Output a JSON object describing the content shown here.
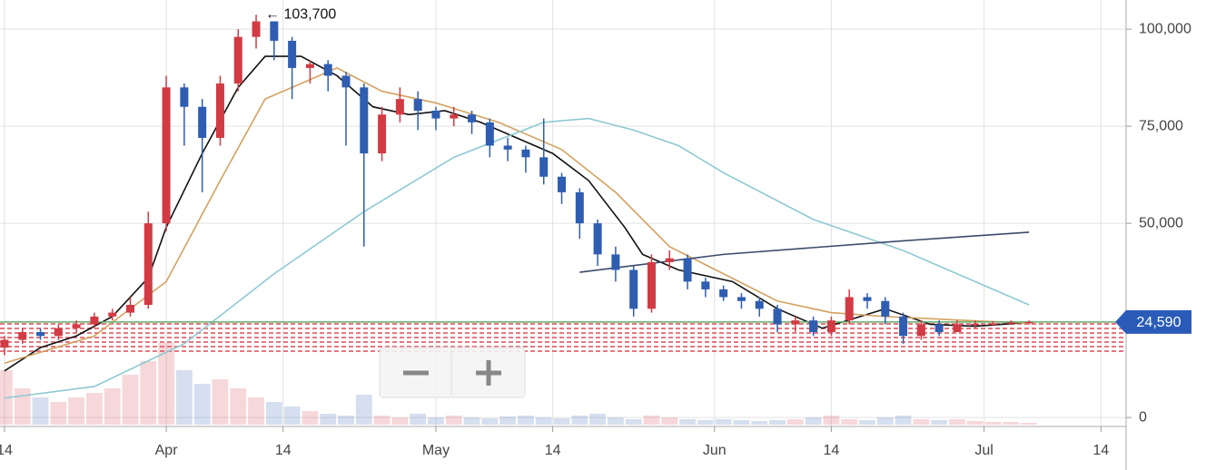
{
  "chart_data": {
    "type": "candlestick",
    "xlim": [
      -0.5,
      124.8
    ],
    "xticks": [
      {
        "value": 0,
        "label": "14"
      },
      {
        "value": 18,
        "label": "Apr"
      },
      {
        "value": 31,
        "label": "14"
      },
      {
        "value": 48,
        "label": "May"
      },
      {
        "value": 61,
        "label": "14"
      },
      {
        "value": 79,
        "label": "Jun"
      },
      {
        "value": 92,
        "label": "14"
      },
      {
        "value": 109,
        "label": "Jul"
      },
      {
        "value": 122,
        "label": "14"
      }
    ],
    "ylim": [
      -2300,
      107500
    ],
    "yticks": [
      0,
      {
        "value": 50000,
        "label": "50,000"
      },
      {
        "value": 75000,
        "label": "75,000"
      },
      {
        "value": 100000,
        "label": "100,000"
      }
    ],
    "grid": true,
    "up_color": "#d23b44",
    "down_color": "#2e5db1",
    "volume_ylim": [
      0,
      100
    ],
    "candles": {
      "x": [
        0,
        2,
        4,
        6,
        8,
        10,
        12,
        14,
        16,
        18,
        20,
        22,
        24,
        26,
        28,
        30,
        32,
        34,
        36,
        38,
        40,
        42,
        44,
        46,
        48,
        50,
        52,
        54,
        56,
        58,
        60,
        62,
        64,
        66,
        68,
        70,
        72,
        74,
        76,
        78,
        80,
        82,
        84,
        86,
        88,
        90,
        92,
        94,
        96,
        98,
        100,
        102,
        104,
        106,
        108,
        110,
        112,
        114
      ],
      "open": [
        18000,
        20000,
        22000,
        21000,
        23000,
        24000,
        26000,
        27000,
        29000,
        50000,
        85000,
        80000,
        72000,
        86000,
        98000,
        102000,
        97000,
        90000,
        91000,
        88000,
        85000,
        68000,
        78000,
        82000,
        79000,
        77000,
        78000,
        76000,
        70000,
        69000,
        67000,
        62000,
        58000,
        50000,
        42000,
        38000,
        28000,
        40000,
        41000,
        35000,
        33000,
        31000,
        30000,
        28000,
        24000,
        25000,
        22000,
        25000,
        31000,
        30000,
        26000,
        21000,
        24000,
        22000,
        24000,
        24100,
        24200,
        24500
      ],
      "high": [
        21000,
        23000,
        23000,
        24000,
        25000,
        27000,
        28000,
        31000,
        53000,
        88000,
        86000,
        82000,
        88000,
        100000,
        103700,
        102000,
        98000,
        92000,
        92000,
        89000,
        86000,
        80000,
        85000,
        84000,
        80000,
        80000,
        79000,
        77000,
        72000,
        70000,
        77000,
        63000,
        59000,
        51000,
        44000,
        39000,
        42000,
        43000,
        42000,
        36000,
        34000,
        32000,
        31000,
        29000,
        26000,
        26000,
        26000,
        33000,
        32000,
        31000,
        27000,
        25000,
        25000,
        25000,
        25000,
        24800,
        25000,
        25000
      ],
      "low": [
        16000,
        19000,
        20000,
        20000,
        22000,
        23000,
        25000,
        26000,
        28000,
        48000,
        70000,
        58000,
        70000,
        84000,
        95000,
        92000,
        82000,
        86000,
        84000,
        70000,
        44000,
        66000,
        76000,
        74000,
        74000,
        75000,
        73000,
        67000,
        66000,
        63000,
        60000,
        55000,
        46000,
        39000,
        35000,
        26000,
        27000,
        38000,
        33000,
        31000,
        30000,
        28000,
        26000,
        22000,
        22000,
        21000,
        21000,
        24000,
        28000,
        24000,
        19000,
        20000,
        21000,
        22000,
        23000,
        23600,
        23900,
        24000
      ],
      "close": [
        20000,
        22000,
        21000,
        23000,
        24000,
        26000,
        27000,
        29000,
        50000,
        85000,
        80000,
        72000,
        86000,
        98000,
        102000,
        97000,
        90000,
        91000,
        88000,
        85000,
        68000,
        78000,
        82000,
        79000,
        77000,
        78000,
        76000,
        70000,
        69000,
        67000,
        62000,
        58000,
        50000,
        42000,
        38000,
        28000,
        40000,
        41000,
        35000,
        33000,
        31000,
        30000,
        28000,
        24000,
        25000,
        22000,
        25000,
        31000,
        30000,
        26000,
        21000,
        24000,
        22000,
        24000,
        24100,
        24200,
        24500,
        24590
      ],
      "volume": [
        60,
        40,
        30,
        25,
        30,
        35,
        40,
        55,
        70,
        90,
        60,
        45,
        50,
        40,
        30,
        25,
        20,
        15,
        12,
        10,
        33,
        10,
        8,
        12,
        8,
        10,
        8,
        7,
        9,
        10,
        8,
        7,
        10,
        12,
        8,
        6,
        10,
        8,
        6,
        5,
        6,
        5,
        4,
        5,
        6,
        8,
        10,
        6,
        5,
        8,
        10,
        6,
        5,
        6,
        4,
        3,
        3,
        2
      ]
    },
    "lines": [
      {
        "color": "#111111",
        "x": [
          0,
          4,
          8,
          12,
          16,
          18,
          22,
          26,
          29,
          33,
          37,
          41,
          45,
          49,
          53,
          57,
          61,
          65,
          69,
          71,
          75,
          81,
          86,
          91,
          98,
          103,
          108,
          114
        ],
        "values": [
          12000,
          18000,
          21000,
          26000,
          36000,
          49000,
          68000,
          85000,
          93000,
          93000,
          88000,
          80000,
          78000,
          79000,
          76000,
          72000,
          68000,
          61000,
          49000,
          42000,
          38000,
          35000,
          28000,
          23000,
          28000,
          24000,
          23500,
          24500
        ]
      },
      {
        "color": "#d4a160",
        "x": [
          0,
          10,
          18,
          24,
          29,
          37,
          42,
          48,
          55,
          62,
          68,
          74,
          80,
          86,
          92,
          98,
          107,
          114
        ],
        "values": [
          14000,
          21000,
          35000,
          61000,
          82000,
          90000,
          84000,
          81000,
          76000,
          69000,
          58000,
          44000,
          37000,
          30000,
          27000,
          26000,
          25000,
          24300
        ]
      },
      {
        "color": "#8ec9d2",
        "x": [
          0,
          10,
          20,
          30,
          40,
          50,
          60,
          65,
          70,
          75,
          80,
          90,
          100,
          114
        ],
        "values": [
          5000,
          8000,
          19000,
          37000,
          53000,
          67000,
          76000,
          77000,
          74000,
          70000,
          63000,
          51000,
          43000,
          29000
        ]
      },
      {
        "color": "#3c4a6b",
        "x": [
          64,
          80,
          100,
          114
        ],
        "values": [
          37400,
          42000,
          45500,
          47700
        ]
      }
    ],
    "last_price": {
      "value": 24590,
      "label": "24,590"
    },
    "high_annotation": {
      "value": 103700,
      "label": "← 103,700"
    }
  }
}
